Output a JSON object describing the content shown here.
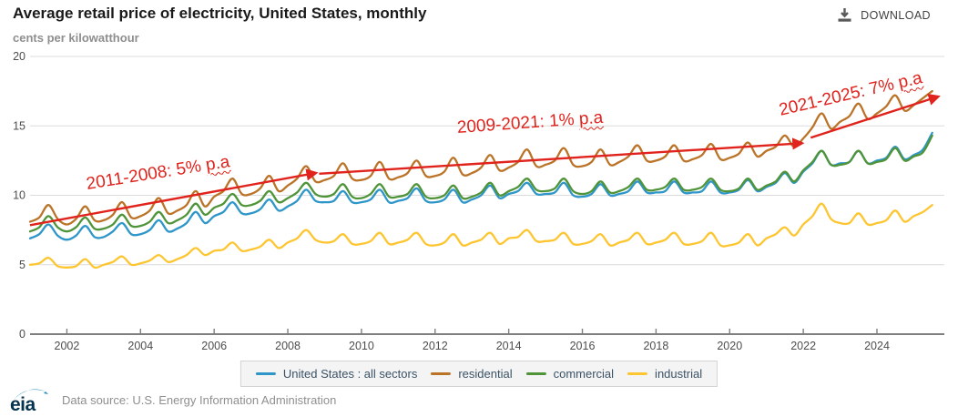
{
  "header": {
    "title": "Average retail price of electricity, United States, monthly",
    "subtitle": "cents per kilowatthour",
    "download_label": "DOWNLOAD"
  },
  "footer": {
    "logo_text": "eia",
    "source": "Data source: U.S. Energy Information Administration"
  },
  "chart_data": {
    "type": "line",
    "title": "Average retail price of electricity, United States, monthly",
    "ylabel": "cents per kilowatthour",
    "xlim": [
      2001,
      2025.83
    ],
    "ylim": [
      0,
      20
    ],
    "y_ticks": [
      0,
      5,
      10,
      15,
      20
    ],
    "x_ticks": [
      2002,
      2004,
      2006,
      2008,
      2010,
      2012,
      2014,
      2016,
      2018,
      2020,
      2022,
      2024
    ],
    "grid": true,
    "legend_position": "bottom",
    "x_start": 2001.0,
    "x_step": 0.25,
    "series": [
      {
        "name": "United States : all sectors",
        "color": "#2e96c9",
        "values": [
          6.9,
          7.2,
          7.9,
          7.1,
          6.8,
          7.1,
          7.8,
          7.0,
          7.0,
          7.4,
          8.0,
          7.2,
          7.2,
          7.5,
          8.2,
          7.4,
          7.6,
          8.0,
          8.8,
          8.0,
          8.5,
          8.8,
          9.5,
          8.7,
          8.7,
          9.0,
          9.7,
          8.9,
          9.2,
          9.6,
          10.4,
          9.6,
          9.5,
          9.6,
          10.3,
          9.5,
          9.5,
          9.7,
          10.4,
          9.5,
          9.6,
          9.8,
          10.5,
          9.6,
          9.5,
          9.7,
          10.4,
          9.5,
          9.7,
          10.0,
          10.7,
          9.8,
          10.1,
          10.3,
          10.9,
          10.1,
          10.1,
          10.2,
          10.9,
          10.0,
          9.9,
          10.1,
          10.8,
          10.0,
          10.1,
          10.3,
          11.0,
          10.2,
          10.2,
          10.3,
          11.0,
          10.2,
          10.2,
          10.3,
          11.0,
          10.2,
          10.2,
          10.4,
          11.1,
          10.3,
          10.6,
          10.9,
          11.6,
          10.9,
          11.7,
          12.3,
          13.2,
          12.2,
          12.3,
          12.4,
          13.2,
          12.3,
          12.5,
          12.7,
          13.5,
          12.6,
          12.9,
          13.3,
          14.5
        ]
      },
      {
        "name": "residential",
        "color": "#bb7328",
        "values": [
          8.1,
          8.4,
          9.3,
          8.3,
          7.9,
          8.3,
          9.2,
          8.2,
          8.2,
          8.6,
          9.5,
          8.4,
          8.5,
          8.9,
          9.8,
          8.7,
          8.9,
          9.3,
          10.3,
          9.2,
          9.9,
          10.3,
          11.2,
          10.1,
          10.1,
          10.5,
          11.4,
          10.3,
          10.7,
          11.2,
          12.1,
          11.0,
          11.1,
          11.4,
          12.3,
          11.2,
          11.1,
          11.4,
          12.4,
          11.2,
          11.3,
          11.6,
          12.5,
          11.4,
          11.4,
          11.7,
          12.7,
          11.5,
          11.6,
          12.0,
          12.9,
          11.8,
          12.0,
          12.4,
          13.3,
          12.1,
          12.2,
          12.5,
          13.4,
          12.2,
          12.1,
          12.4,
          13.3,
          12.2,
          12.4,
          12.8,
          13.6,
          12.5,
          12.5,
          12.8,
          13.6,
          12.5,
          12.6,
          12.9,
          13.7,
          12.6,
          12.7,
          13.0,
          13.8,
          12.8,
          13.2,
          13.5,
          14.3,
          13.5,
          14.1,
          14.9,
          15.9,
          14.8,
          15.3,
          15.7,
          16.6,
          15.5,
          15.9,
          16.4,
          17.2,
          16.1,
          16.5,
          17.0,
          17.5
        ]
      },
      {
        "name": "commercial",
        "color": "#4f9438",
        "values": [
          7.4,
          7.7,
          8.5,
          7.7,
          7.4,
          7.7,
          8.4,
          7.6,
          7.6,
          7.9,
          8.6,
          7.8,
          7.8,
          8.1,
          8.8,
          8.0,
          8.2,
          8.6,
          9.4,
          8.6,
          9.1,
          9.4,
          10.1,
          9.3,
          9.3,
          9.6,
          10.3,
          9.5,
          9.8,
          10.2,
          10.9,
          10.1,
          9.9,
          10.1,
          10.8,
          9.9,
          9.8,
          10.1,
          10.8,
          9.9,
          9.9,
          10.1,
          10.8,
          9.9,
          9.8,
          10.0,
          10.7,
          9.8,
          9.9,
          10.2,
          10.9,
          10.0,
          10.3,
          10.6,
          11.2,
          10.4,
          10.3,
          10.5,
          11.2,
          10.3,
          10.1,
          10.3,
          11.0,
          10.2,
          10.3,
          10.6,
          11.2,
          10.4,
          10.4,
          10.6,
          11.2,
          10.4,
          10.4,
          10.6,
          11.2,
          10.4,
          10.3,
          10.5,
          11.2,
          10.4,
          10.7,
          11.0,
          11.7,
          11.0,
          11.8,
          12.4,
          13.2,
          12.2,
          12.2,
          12.4,
          13.2,
          12.3,
          12.4,
          12.6,
          13.4,
          12.5,
          12.8,
          13.1,
          14.3
        ]
      },
      {
        "name": "industrial",
        "color": "#fdc530",
        "values": [
          5.0,
          5.1,
          5.5,
          4.9,
          4.8,
          4.9,
          5.4,
          4.8,
          5.0,
          5.2,
          5.6,
          5.0,
          5.1,
          5.3,
          5.7,
          5.2,
          5.4,
          5.7,
          6.2,
          5.7,
          6.0,
          6.1,
          6.6,
          6.0,
          6.1,
          6.3,
          6.8,
          6.2,
          6.6,
          6.9,
          7.5,
          6.8,
          6.6,
          6.7,
          7.2,
          6.5,
          6.5,
          6.7,
          7.3,
          6.5,
          6.6,
          6.8,
          7.3,
          6.5,
          6.4,
          6.6,
          7.2,
          6.4,
          6.6,
          6.8,
          7.3,
          6.5,
          6.9,
          7.0,
          7.5,
          6.7,
          6.7,
          6.8,
          7.3,
          6.5,
          6.5,
          6.7,
          7.2,
          6.4,
          6.6,
          6.8,
          7.3,
          6.5,
          6.6,
          6.8,
          7.3,
          6.5,
          6.5,
          6.7,
          7.3,
          6.4,
          6.4,
          6.6,
          7.2,
          6.4,
          6.9,
          7.2,
          7.7,
          7.1,
          7.9,
          8.5,
          9.4,
          8.3,
          8.0,
          8.0,
          8.7,
          7.9,
          8.0,
          8.2,
          8.9,
          8.1,
          8.5,
          8.8,
          9.3
        ]
      }
    ],
    "annotations": [
      {
        "text": "2011-2008: 5% ",
        "suffix": "p.a",
        "color": "#e0231c",
        "arrow": {
          "x1": 2001.0,
          "y1": 7.85,
          "x2": 2008.75,
          "y2": 11.6
        }
      },
      {
        "text": "2009-2021: 1% ",
        "suffix": "p.a",
        "color": "#e0231c",
        "arrow": {
          "x1": 2008.85,
          "y1": 11.55,
          "x2": 2021.95,
          "y2": 13.75
        }
      },
      {
        "text": "2021-2025: 7% ",
        "suffix": "p.a",
        "color": "#e0231c",
        "arrow": {
          "x1": 2022.2,
          "y1": 14.15,
          "x2": 2025.65,
          "y2": 17.1
        }
      }
    ]
  }
}
